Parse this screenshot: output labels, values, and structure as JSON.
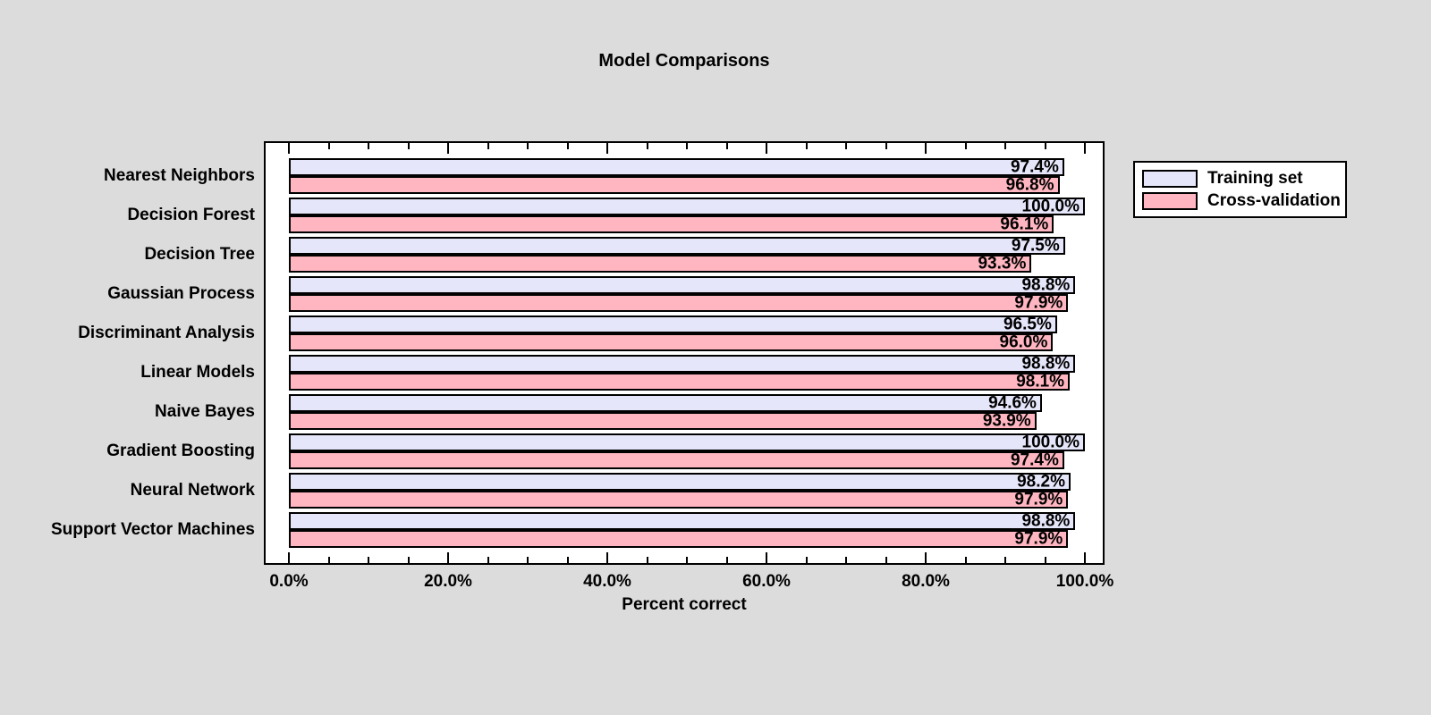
{
  "page": {
    "background_color": "#dcdcdc"
  },
  "chart_data": {
    "type": "bar",
    "orientation": "horizontal",
    "title": "Model Comparisons",
    "xlabel": "Percent correct",
    "plot_background": "#ffffff",
    "bar_border_color": "#000000",
    "categories": [
      "Nearest Neighbors",
      "Decision Forest",
      "Decision Tree",
      "Gaussian Process",
      "Discriminant Analysis",
      "Linear Models",
      "Naive Bayes",
      "Gradient Boosting",
      "Neural Network",
      "Support Vector Machines"
    ],
    "series": [
      {
        "name": "Training set",
        "color": "#e6e6fa",
        "values": [
          97.4,
          100.0,
          97.5,
          98.8,
          96.5,
          98.8,
          94.6,
          100.0,
          98.2,
          98.8
        ]
      },
      {
        "name": "Cross-validation",
        "color": "#ffb6c1",
        "values": [
          96.8,
          96.1,
          93.3,
          97.9,
          96.0,
          98.1,
          93.9,
          97.4,
          97.9,
          97.9
        ]
      }
    ],
    "value_label_suffix": "%",
    "x_tick_values": [
      0,
      20,
      40,
      60,
      80,
      100
    ],
    "x_ticks": [
      "0.0%",
      "20.0%",
      "40.0%",
      "60.0%",
      "80.0%",
      "100.0%"
    ],
    "x_minor_step": 5,
    "xlim": [
      0,
      100
    ],
    "grid": false,
    "legend_position": "outside-top-right",
    "value_labels_shown": true
  }
}
